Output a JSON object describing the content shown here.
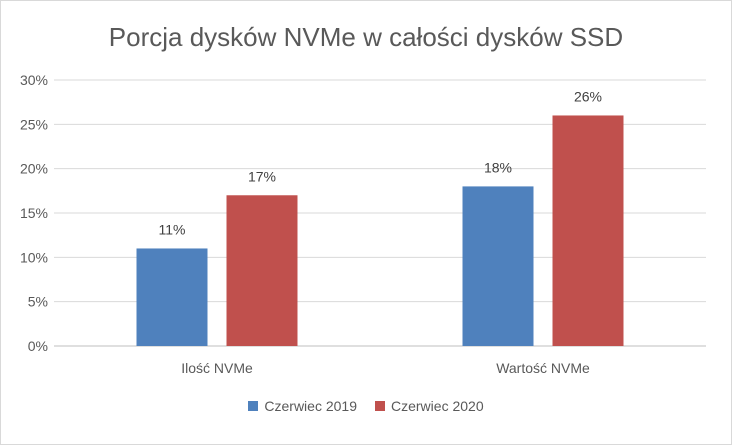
{
  "chart_data": {
    "type": "bar",
    "title": "Porcja dysków NVMe w całości dysków SSD",
    "categories": [
      "Ilość NVMe",
      "Wartość NVMe"
    ],
    "series": [
      {
        "name": "Czerwiec 2019",
        "values": [
          11,
          18
        ],
        "labels": [
          "11%",
          "18%"
        ],
        "color": "#4f81bd"
      },
      {
        "name": "Czerwiec 2020",
        "values": [
          17,
          26
        ],
        "labels": [
          "17%",
          "26%"
        ],
        "color": "#c0504d"
      }
    ],
    "ylim": [
      0,
      30
    ],
    "yticks": [
      0,
      5,
      10,
      15,
      20,
      25,
      30
    ],
    "ytick_labels": [
      "0%",
      "5%",
      "10%",
      "15%",
      "20%",
      "25%",
      "30%"
    ],
    "grid": true,
    "legend_position": "bottom",
    "xlabel": "",
    "ylabel": ""
  }
}
